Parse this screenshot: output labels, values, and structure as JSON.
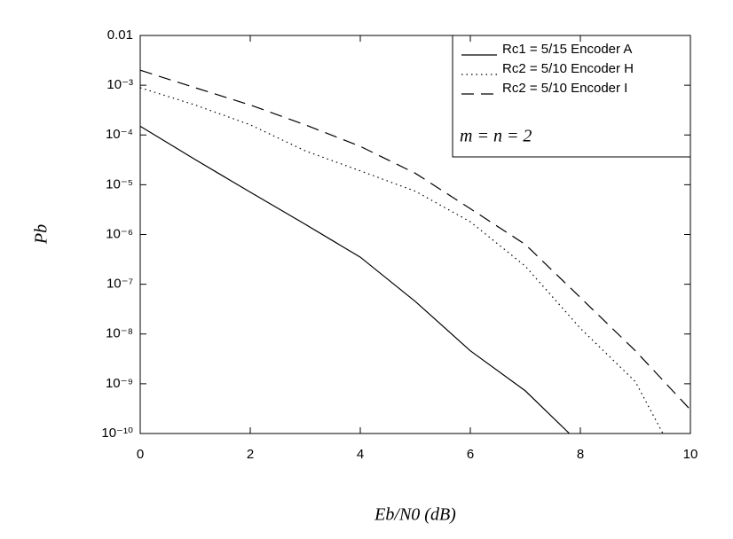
{
  "chart_data": {
    "type": "line",
    "xlabel": "Eb/N0 (dB)",
    "ylabel": "Pb",
    "log_y": true,
    "xlim": [
      0,
      10
    ],
    "xticks": [
      0,
      2,
      4,
      6,
      8,
      10
    ],
    "ylim": [
      1e-10,
      0.01
    ],
    "yticks": [
      {
        "value": 0.01,
        "label": "0.01"
      },
      {
        "value": 0.001,
        "label": "10⁻³"
      },
      {
        "value": 0.0001,
        "label": "10⁻⁴"
      },
      {
        "value": 1e-05,
        "label": "10⁻⁵"
      },
      {
        "value": 1e-06,
        "label": "10⁻⁶"
      },
      {
        "value": 1e-07,
        "label": "10⁻⁷"
      },
      {
        "value": 1e-08,
        "label": "10⁻⁸"
      },
      {
        "value": 1e-09,
        "label": "10⁻⁹"
      },
      {
        "value": 1e-10,
        "label": "10⁻¹⁰"
      }
    ],
    "annotation": "m = n = 2",
    "series": [
      {
        "name": "Rc1 = 5/15 Encoder A",
        "color": "#000000",
        "dash": "solid",
        "x": [
          0,
          1,
          2,
          3,
          4,
          5,
          6,
          7,
          7.8
        ],
        "values": [
          0.00015,
          3.2e-05,
          7.1e-06,
          1.6e-06,
          3.5e-07,
          4.5e-08,
          4.6e-09,
          7.2e-10,
          1e-10
        ]
      },
      {
        "name": "Rc2 = 5/10 Encoder H",
        "color": "#000000",
        "dash": "dotted",
        "x": [
          0,
          1,
          2,
          3,
          4,
          5,
          6,
          7,
          8,
          9,
          9.5
        ],
        "values": [
          0.00089,
          0.0004,
          0.00016,
          4.8e-05,
          1.9e-05,
          7.4e-06,
          1.8e-06,
          2.3e-07,
          1.3e-08,
          1.1e-09,
          1e-10
        ]
      },
      {
        "name": "Rc2 = 5/10 Encoder I",
        "color": "#000000",
        "dash": "dashed",
        "x": [
          0,
          1,
          2,
          3,
          4,
          5,
          6,
          7,
          8,
          9,
          10
        ],
        "values": [
          0.002,
          0.00089,
          0.0004,
          0.00016,
          5.9e-05,
          1.7e-05,
          3.3e-06,
          6.3e-07,
          5.4e-08,
          4.6e-09,
          3e-10
        ]
      }
    ]
  }
}
